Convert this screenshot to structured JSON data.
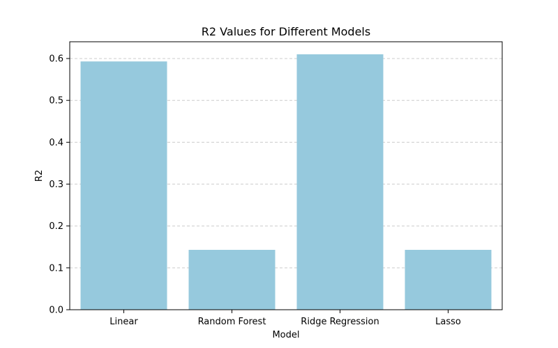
{
  "chart_data": {
    "type": "bar",
    "title": "R2 Values for Different Models",
    "xlabel": "Model",
    "ylabel": "R2",
    "categories": [
      "Linear",
      "Random Forest",
      "Ridge Regression",
      "Lasso"
    ],
    "values": [
      0.593,
      0.143,
      0.61,
      0.143
    ],
    "ylim": [
      0,
      0.64
    ],
    "yticks": [
      0.0,
      0.1,
      0.2,
      0.3,
      0.4,
      0.5,
      0.6
    ],
    "ytick_labels": [
      "0.0",
      "0.1",
      "0.2",
      "0.3",
      "0.4",
      "0.5",
      "0.6"
    ],
    "grid": "y-dashed",
    "bar_color": "#96c9dd",
    "grid_color": "#cccccc"
  }
}
